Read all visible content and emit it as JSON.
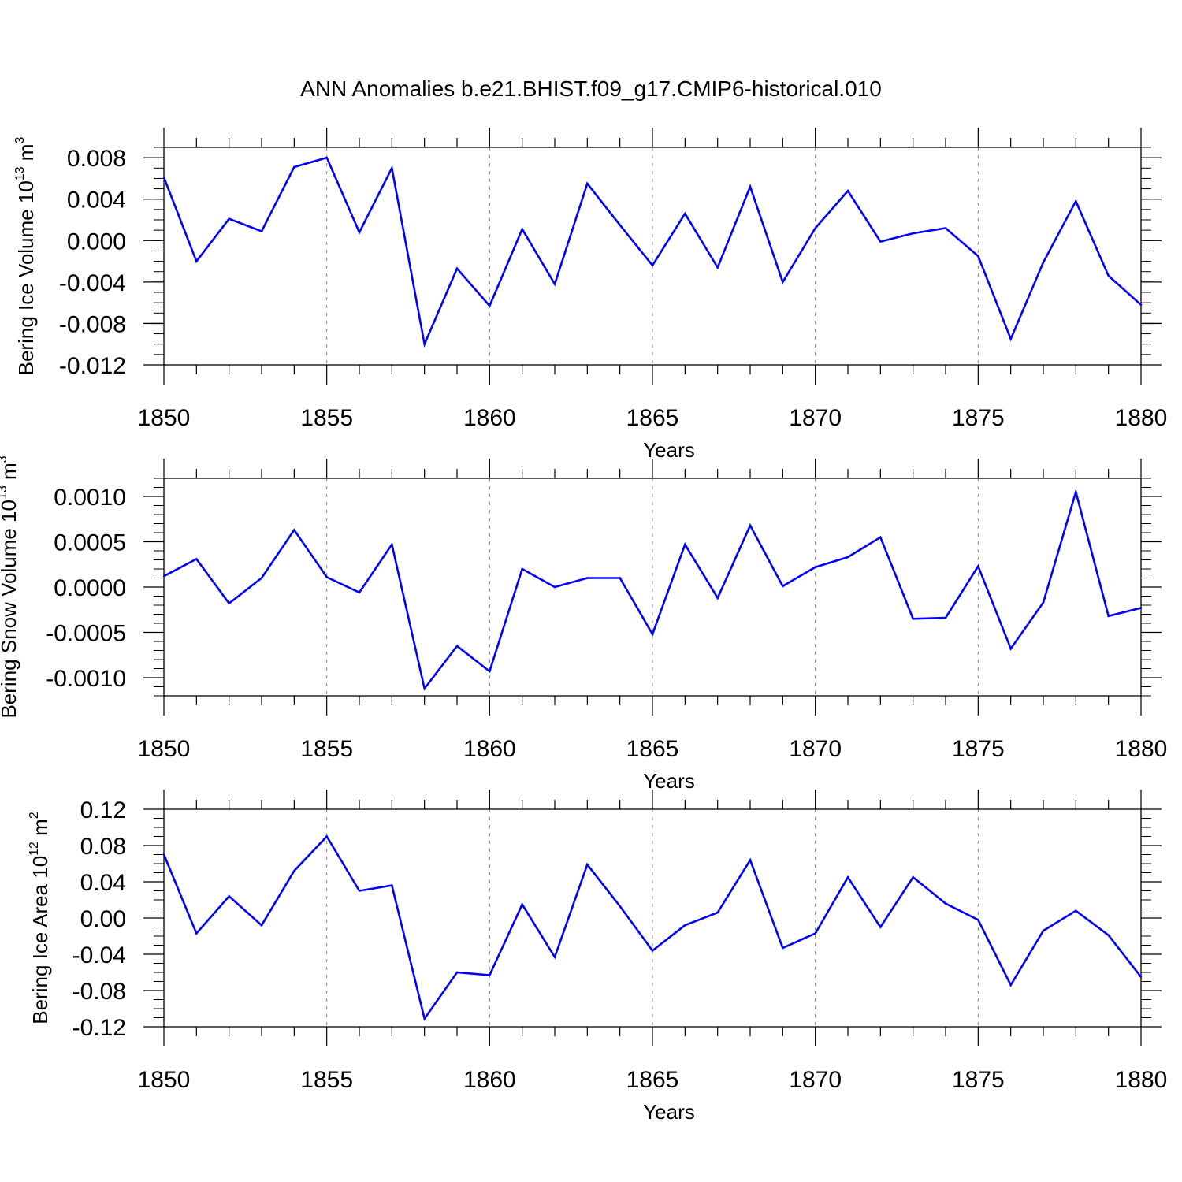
{
  "title": "ANN Anomalies b.e21.BHIST.f09_g17.CMIP6-historical.010",
  "colors": {
    "line": "#0000ff",
    "axis": "#000000",
    "grid": "#808080",
    "background": "#ffffff"
  },
  "chart_data": [
    {
      "type": "line",
      "xlabel": "Years",
      "ylabel": {
        "text": "Bering Ice Volume 10",
        "sup": "13",
        "unit": " m",
        "unit_sup": "3"
      },
      "xlim": [
        1850,
        1880
      ],
      "ylim": [
        -0.012,
        0.009
      ],
      "x_ticks": [
        1850,
        1855,
        1860,
        1865,
        1870,
        1875,
        1880
      ],
      "x_tick_labels": [
        "1850",
        "1855",
        "1860",
        "1865",
        "1870",
        "1875",
        "1880"
      ],
      "y_ticks": [
        0.008,
        0.004,
        0.0,
        -0.004,
        -0.008,
        -0.012
      ],
      "y_tick_labels": [
        "0.008",
        "0.004",
        "0.000",
        "-0.004",
        "-0.008",
        "-0.012"
      ],
      "y_minor_step": 0.001,
      "grid": "vertical dashed at major x ticks",
      "x": [
        1850,
        1851,
        1852,
        1853,
        1854,
        1855,
        1856,
        1857,
        1858,
        1859,
        1860,
        1861,
        1862,
        1863,
        1864,
        1865,
        1866,
        1867,
        1868,
        1869,
        1870,
        1871,
        1872,
        1873,
        1874,
        1875,
        1876,
        1877,
        1878,
        1879,
        1880
      ],
      "values": [
        0.0061,
        -0.002,
        0.0021,
        0.0009,
        0.0071,
        0.008,
        0.0008,
        0.007,
        -0.01,
        -0.0027,
        -0.0063,
        0.0011,
        -0.0042,
        0.0055,
        0.0015,
        -0.0024,
        0.0026,
        -0.0026,
        0.0052,
        -0.004,
        0.0012,
        0.0048,
        -0.0001,
        0.0007,
        0.0012,
        -0.0015,
        -0.0095,
        -0.0021,
        0.0038,
        -0.0034,
        -0.0062
      ]
    },
    {
      "type": "line",
      "xlabel": "Years",
      "ylabel": {
        "text": "Bering Snow Volume 10",
        "sup": "13",
        "unit": " m",
        "unit_sup": "3"
      },
      "xlim": [
        1850,
        1880
      ],
      "ylim": [
        -0.0012,
        0.0012
      ],
      "x_ticks": [
        1850,
        1855,
        1860,
        1865,
        1870,
        1875,
        1880
      ],
      "x_tick_labels": [
        "1850",
        "1855",
        "1860",
        "1865",
        "1870",
        "1875",
        "1880"
      ],
      "y_ticks": [
        0.001,
        0.0005,
        0.0,
        -0.0005,
        -0.001
      ],
      "y_tick_labels": [
        "0.0010",
        "0.0005",
        "0.0000",
        "-0.0005",
        "-0.0010"
      ],
      "y_minor_step": 0.0001,
      "grid": "vertical dashed at major x ticks",
      "x": [
        1850,
        1851,
        1852,
        1853,
        1854,
        1855,
        1856,
        1857,
        1858,
        1859,
        1860,
        1861,
        1862,
        1863,
        1864,
        1865,
        1866,
        1867,
        1868,
        1869,
        1870,
        1871,
        1872,
        1873,
        1874,
        1875,
        1876,
        1877,
        1878,
        1879,
        1880
      ],
      "values": [
        0.00012,
        0.00031,
        -0.00018,
        0.0001,
        0.00063,
        0.00011,
        -6e-05,
        0.00047,
        -0.00112,
        -0.00065,
        -0.00093,
        0.0002,
        0.0,
        0.0001,
        0.0001,
        -0.00052,
        0.00047,
        -0.00012,
        0.00068,
        1e-05,
        0.00022,
        0.00033,
        0.00055,
        -0.00035,
        -0.00034,
        0.00023,
        -0.00068,
        -0.00017,
        0.00105,
        -0.00032,
        -0.00023
      ]
    },
    {
      "type": "line",
      "xlabel": "Years",
      "ylabel": {
        "text": "Bering Ice Area 10",
        "sup": "12",
        "unit": " m",
        "unit_sup": "2"
      },
      "xlim": [
        1850,
        1880
      ],
      "ylim": [
        -0.12,
        0.12
      ],
      "x_ticks": [
        1850,
        1855,
        1860,
        1865,
        1870,
        1875,
        1880
      ],
      "x_tick_labels": [
        "1850",
        "1855",
        "1860",
        "1865",
        "1870",
        "1875",
        "1880"
      ],
      "y_ticks": [
        0.12,
        0.08,
        0.04,
        0.0,
        -0.04,
        -0.08,
        -0.12
      ],
      "y_tick_labels": [
        "0.12",
        "0.08",
        "0.04",
        "0.00",
        "-0.04",
        "-0.08",
        "-0.12"
      ],
      "y_minor_step": 0.01,
      "grid": "vertical dashed at major x ticks",
      "x": [
        1850,
        1851,
        1852,
        1853,
        1854,
        1855,
        1856,
        1857,
        1858,
        1859,
        1860,
        1861,
        1862,
        1863,
        1864,
        1865,
        1866,
        1867,
        1868,
        1869,
        1870,
        1871,
        1872,
        1873,
        1874,
        1875,
        1876,
        1877,
        1878,
        1879,
        1880
      ],
      "values": [
        0.07,
        -0.017,
        0.024,
        -0.008,
        0.052,
        0.09,
        0.03,
        0.036,
        -0.111,
        -0.06,
        -0.063,
        0.015,
        -0.043,
        0.059,
        0.013,
        -0.036,
        -0.008,
        0.006,
        0.064,
        -0.033,
        -0.017,
        0.045,
        -0.01,
        0.045,
        0.016,
        -0.002,
        -0.074,
        -0.014,
        0.008,
        -0.019,
        -0.065
      ]
    }
  ]
}
